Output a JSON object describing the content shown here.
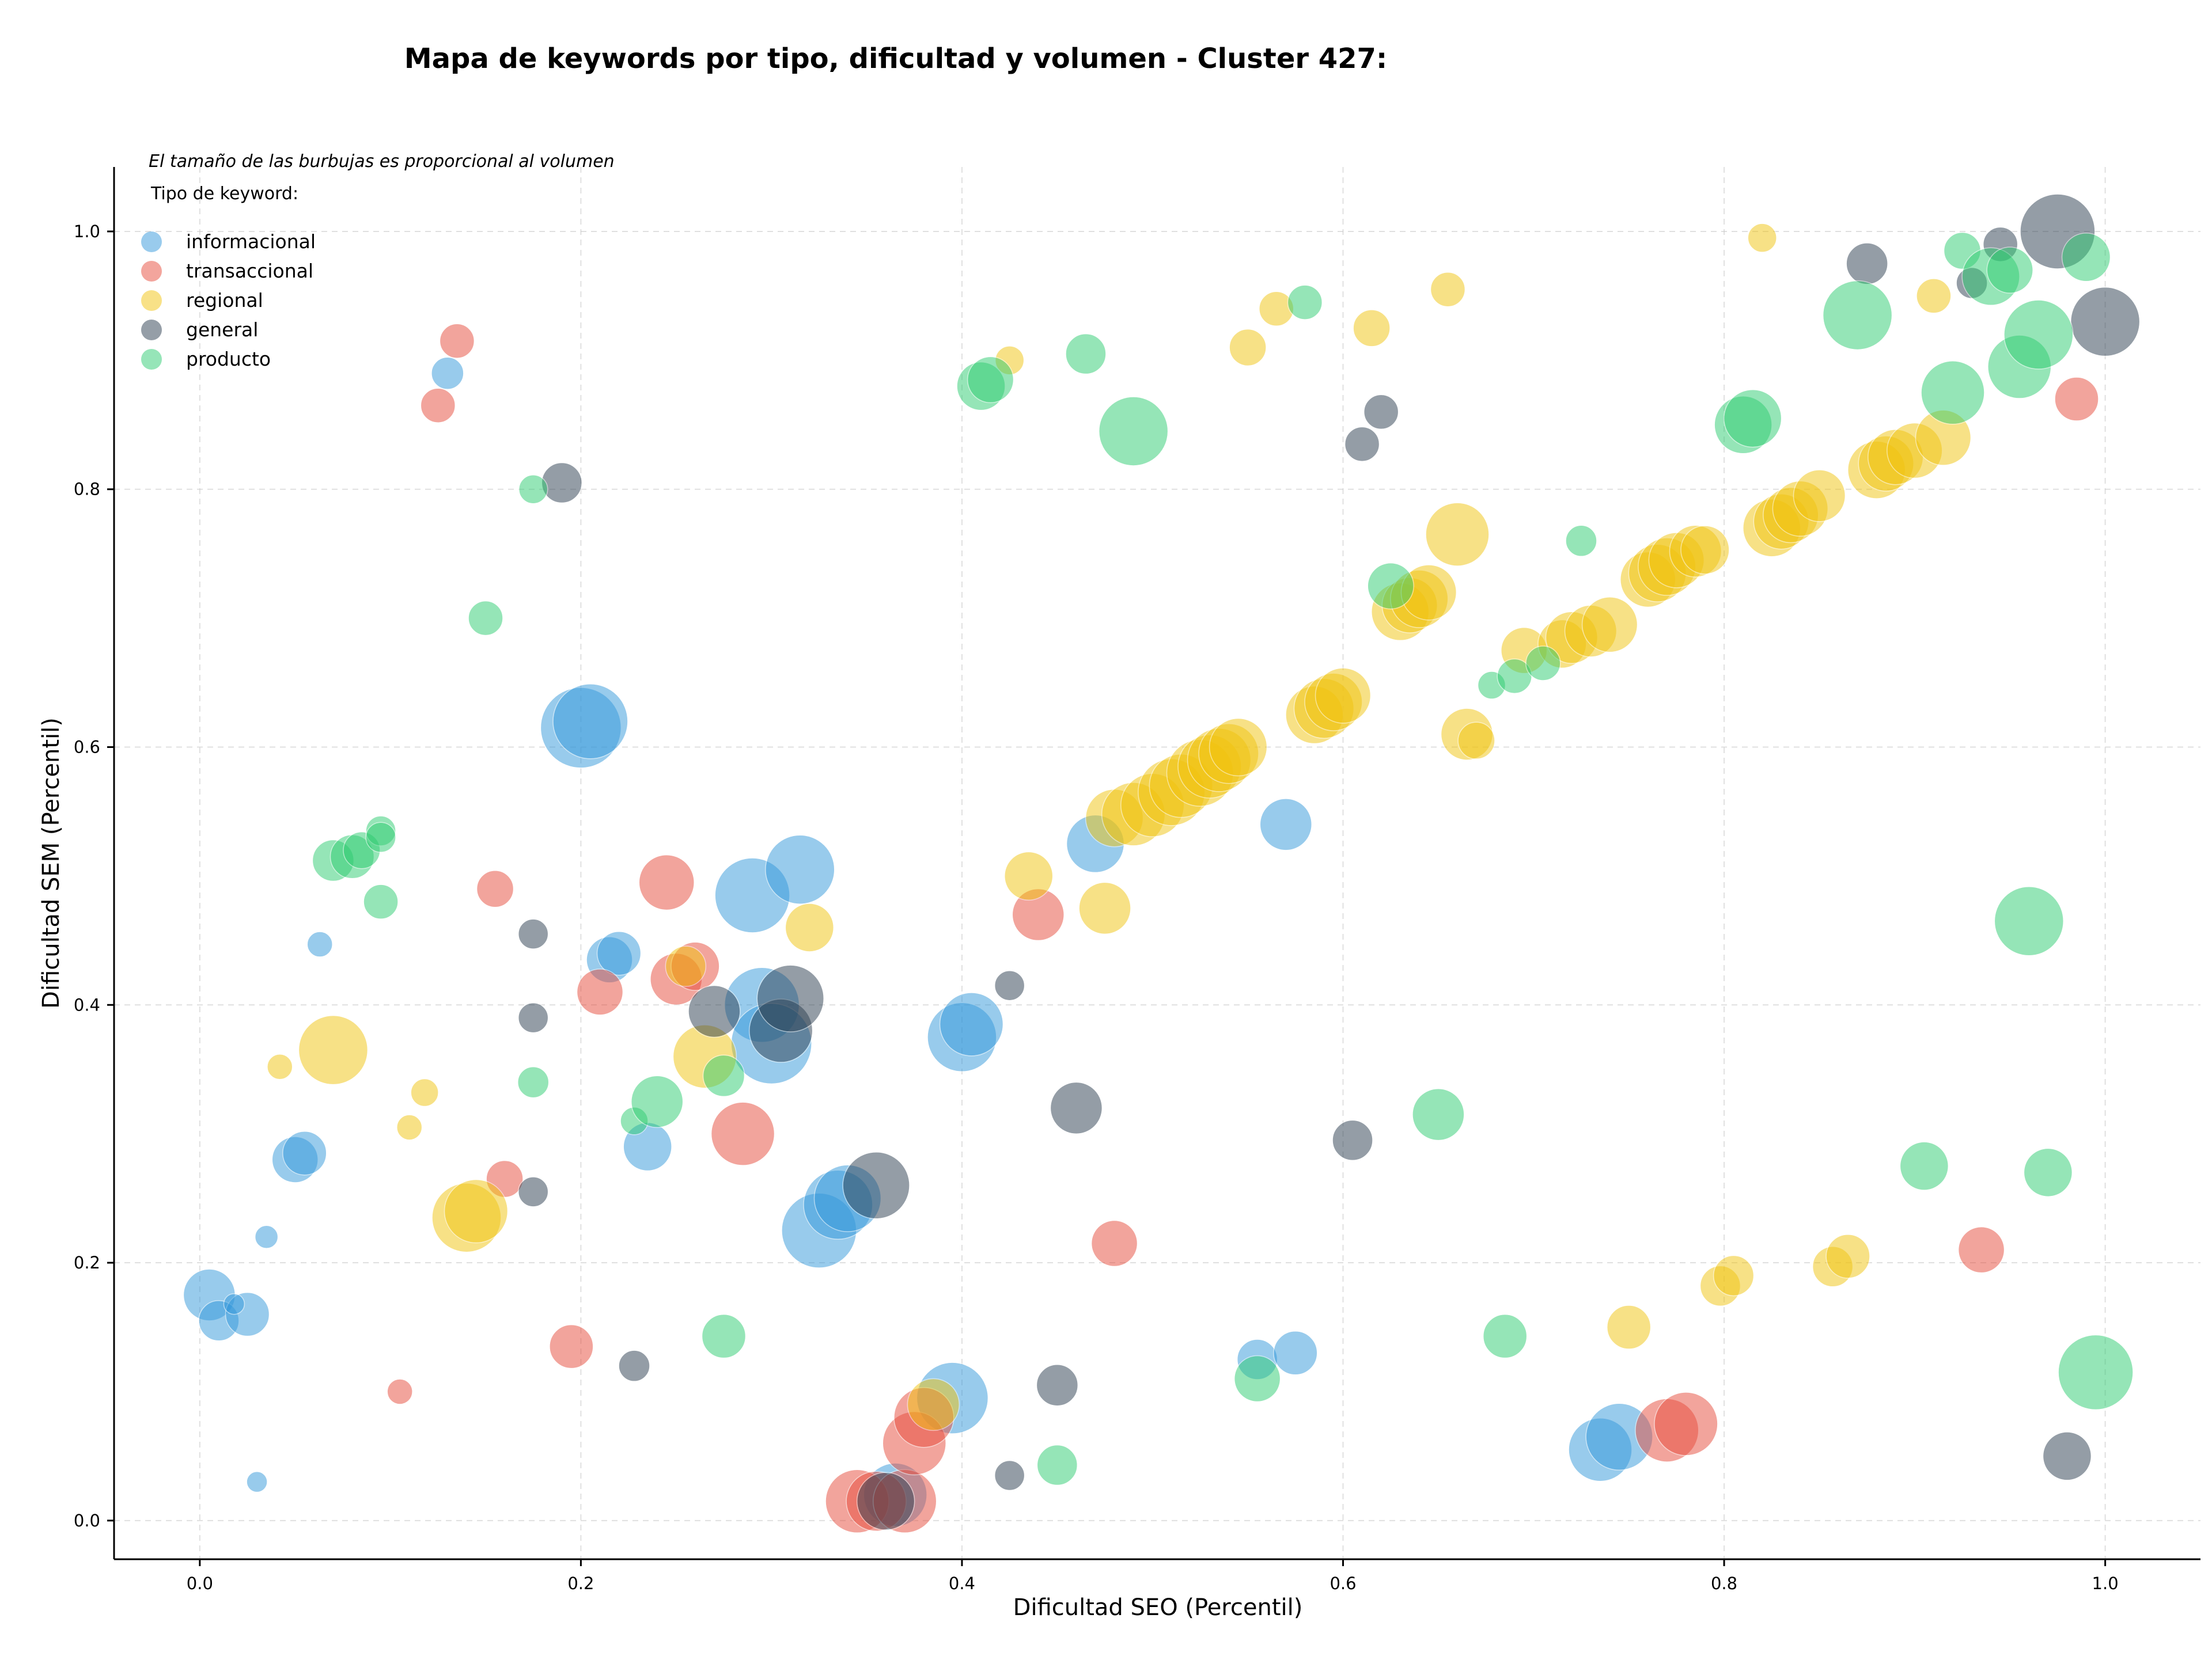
{
  "chart_data": {
    "type": "scatter",
    "title": "Mapa de keywords por tipo, dificultad y volumen - Cluster 427:",
    "xlabel": "Dificultad SEO (Percentil)",
    "ylabel": "Dificultad SEM (Percentil)",
    "xlim": [
      -0.045,
      1.05
    ],
    "ylim": [
      -0.03,
      1.05
    ],
    "x_ticks": [
      "0.0",
      "0.2",
      "0.4",
      "0.6",
      "0.8",
      "1.0"
    ],
    "y_ticks": [
      "0.0",
      "0.2",
      "0.4",
      "0.6",
      "0.8",
      "1.0"
    ],
    "grid": true,
    "note": "El tamaño de las burbujas es proporcional al volumen",
    "legend_title": "Tipo de keyword:",
    "legend_position": "top-left",
    "series": [
      {
        "name": "informacional",
        "color": "#3498db",
        "points": [
          [
            0.005,
            0.175,
            45
          ],
          [
            0.01,
            0.155,
            35
          ],
          [
            0.025,
            0.16,
            38
          ],
          [
            0.018,
            0.168,
            18
          ],
          [
            0.035,
            0.22,
            20
          ],
          [
            0.03,
            0.03,
            18
          ],
          [
            0.05,
            0.28,
            40
          ],
          [
            0.055,
            0.285,
            38
          ],
          [
            0.063,
            0.447,
            22
          ],
          [
            0.2,
            0.615,
            70
          ],
          [
            0.205,
            0.62,
            65
          ],
          [
            0.215,
            0.435,
            40
          ],
          [
            0.22,
            0.44,
            38
          ],
          [
            0.235,
            0.29,
            42
          ],
          [
            0.29,
            0.485,
            65
          ],
          [
            0.315,
            0.505,
            60
          ],
          [
            0.295,
            0.4,
            65
          ],
          [
            0.3,
            0.37,
            70
          ],
          [
            0.325,
            0.225,
            65
          ],
          [
            0.335,
            0.245,
            60
          ],
          [
            0.34,
            0.25,
            58
          ],
          [
            0.365,
            0.02,
            55
          ],
          [
            0.395,
            0.095,
            62
          ],
          [
            0.4,
            0.375,
            60
          ],
          [
            0.405,
            0.385,
            55
          ],
          [
            0.47,
            0.525,
            50
          ],
          [
            0.57,
            0.54,
            45
          ],
          [
            0.555,
            0.125,
            35
          ],
          [
            0.575,
            0.13,
            38
          ],
          [
            0.735,
            0.055,
            55
          ],
          [
            0.745,
            0.065,
            58
          ],
          [
            0.13,
            0.89,
            28
          ]
        ]
      },
      {
        "name": "transaccional",
        "color": "#e74c3c",
        "points": [
          [
            0.135,
            0.915,
            30
          ],
          [
            0.125,
            0.865,
            30
          ],
          [
            0.155,
            0.49,
            32
          ],
          [
            0.16,
            0.265,
            32
          ],
          [
            0.105,
            0.1,
            22
          ],
          [
            0.195,
            0.135,
            38
          ],
          [
            0.21,
            0.41,
            40
          ],
          [
            0.245,
            0.495,
            48
          ],
          [
            0.25,
            0.42,
            45
          ],
          [
            0.26,
            0.43,
            42
          ],
          [
            0.285,
            0.3,
            55
          ],
          [
            0.345,
            0.015,
            55
          ],
          [
            0.355,
            0.015,
            52
          ],
          [
            0.37,
            0.015,
            55
          ],
          [
            0.375,
            0.06,
            55
          ],
          [
            0.38,
            0.08,
            52
          ],
          [
            0.44,
            0.47,
            45
          ],
          [
            0.48,
            0.215,
            40
          ],
          [
            0.77,
            0.07,
            55
          ],
          [
            0.78,
            0.075,
            55
          ],
          [
            0.935,
            0.21,
            40
          ],
          [
            0.985,
            0.87,
            38
          ]
        ]
      },
      {
        "name": "regional",
        "color": "#f1c40f",
        "points": [
          [
            0.042,
            0.352,
            22
          ],
          [
            0.07,
            0.365,
            60
          ],
          [
            0.11,
            0.305,
            22
          ],
          [
            0.118,
            0.332,
            24
          ],
          [
            0.14,
            0.235,
            60
          ],
          [
            0.145,
            0.24,
            55
          ],
          [
            0.255,
            0.43,
            35
          ],
          [
            0.265,
            0.36,
            55
          ],
          [
            0.32,
            0.46,
            42
          ],
          [
            0.385,
            0.09,
            45
          ],
          [
            0.425,
            0.9,
            25
          ],
          [
            0.435,
            0.5,
            42
          ],
          [
            0.475,
            0.475,
            45
          ],
          [
            0.48,
            0.545,
            50
          ],
          [
            0.49,
            0.548,
            55
          ],
          [
            0.5,
            0.555,
            55
          ],
          [
            0.51,
            0.565,
            58
          ],
          [
            0.515,
            0.57,
            55
          ],
          [
            0.525,
            0.58,
            58
          ],
          [
            0.53,
            0.585,
            55
          ],
          [
            0.535,
            0.59,
            55
          ],
          [
            0.54,
            0.595,
            52
          ],
          [
            0.545,
            0.6,
            50
          ],
          [
            0.55,
            0.91,
            32
          ],
          [
            0.565,
            0.94,
            30
          ],
          [
            0.585,
            0.625,
            50
          ],
          [
            0.59,
            0.63,
            52
          ],
          [
            0.595,
            0.635,
            50
          ],
          [
            0.6,
            0.64,
            48
          ],
          [
            0.615,
            0.925,
            32
          ],
          [
            0.63,
            0.705,
            50
          ],
          [
            0.635,
            0.71,
            48
          ],
          [
            0.64,
            0.715,
            50
          ],
          [
            0.645,
            0.72,
            48
          ],
          [
            0.655,
            0.955,
            30
          ],
          [
            0.66,
            0.765,
            55
          ],
          [
            0.665,
            0.61,
            45
          ],
          [
            0.67,
            0.605,
            32
          ],
          [
            0.695,
            0.675,
            40
          ],
          [
            0.715,
            0.68,
            42
          ],
          [
            0.72,
            0.685,
            45
          ],
          [
            0.73,
            0.69,
            45
          ],
          [
            0.74,
            0.695,
            48
          ],
          [
            0.75,
            0.15,
            38
          ],
          [
            0.76,
            0.73,
            48
          ],
          [
            0.765,
            0.735,
            50
          ],
          [
            0.77,
            0.74,
            50
          ],
          [
            0.775,
            0.745,
            48
          ],
          [
            0.785,
            0.752,
            45
          ],
          [
            0.79,
            0.753,
            42
          ],
          [
            0.798,
            0.182,
            35
          ],
          [
            0.805,
            0.19,
            35
          ],
          [
            0.82,
            0.995,
            25
          ],
          [
            0.825,
            0.77,
            50
          ],
          [
            0.83,
            0.775,
            48
          ],
          [
            0.835,
            0.78,
            48
          ],
          [
            0.84,
            0.785,
            48
          ],
          [
            0.85,
            0.795,
            45
          ],
          [
            0.857,
            0.197,
            35
          ],
          [
            0.865,
            0.205,
            38
          ],
          [
            0.88,
            0.815,
            50
          ],
          [
            0.885,
            0.82,
            48
          ],
          [
            0.89,
            0.825,
            48
          ],
          [
            0.9,
            0.83,
            48
          ],
          [
            0.91,
            0.95,
            30
          ],
          [
            0.915,
            0.84,
            48
          ]
        ]
      },
      {
        "name": "general",
        "color": "#2c3e50",
        "points": [
          [
            0.19,
            0.805,
            35
          ],
          [
            0.175,
            0.455,
            26
          ],
          [
            0.175,
            0.39,
            26
          ],
          [
            0.175,
            0.255,
            26
          ],
          [
            0.228,
            0.12,
            27
          ],
          [
            0.27,
            0.395,
            45
          ],
          [
            0.305,
            0.38,
            55
          ],
          [
            0.31,
            0.405,
            58
          ],
          [
            0.355,
            0.26,
            58
          ],
          [
            0.36,
            0.015,
            50
          ],
          [
            0.425,
            0.415,
            26
          ],
          [
            0.425,
            0.035,
            26
          ],
          [
            0.45,
            0.105,
            36
          ],
          [
            0.46,
            0.32,
            45
          ],
          [
            0.605,
            0.295,
            35
          ],
          [
            0.61,
            0.835,
            30
          ],
          [
            0.62,
            0.86,
            30
          ],
          [
            0.875,
            0.975,
            36
          ],
          [
            0.93,
            0.96,
            27
          ],
          [
            0.945,
            0.99,
            30
          ],
          [
            0.975,
            1.0,
            65
          ],
          [
            0.98,
            0.05,
            42
          ],
          [
            1.0,
            0.93,
            60
          ]
        ]
      },
      {
        "name": "producto",
        "color": "#2ecc71",
        "points": [
          [
            0.07,
            0.512,
            36
          ],
          [
            0.08,
            0.515,
            38
          ],
          [
            0.085,
            0.52,
            32
          ],
          [
            0.095,
            0.535,
            26
          ],
          [
            0.095,
            0.53,
            26
          ],
          [
            0.095,
            0.48,
            30
          ],
          [
            0.15,
            0.7,
            30
          ],
          [
            0.175,
            0.8,
            25
          ],
          [
            0.175,
            0.34,
            27
          ],
          [
            0.228,
            0.31,
            24
          ],
          [
            0.24,
            0.325,
            45
          ],
          [
            0.275,
            0.345,
            36
          ],
          [
            0.275,
            0.143,
            38
          ],
          [
            0.41,
            0.88,
            42
          ],
          [
            0.415,
            0.885,
            40
          ],
          [
            0.45,
            0.043,
            35
          ],
          [
            0.465,
            0.905,
            35
          ],
          [
            0.49,
            0.845,
            60
          ],
          [
            0.555,
            0.11,
            40
          ],
          [
            0.58,
            0.945,
            30
          ],
          [
            0.625,
            0.725,
            40
          ],
          [
            0.65,
            0.315,
            45
          ],
          [
            0.678,
            0.648,
            24
          ],
          [
            0.685,
            0.143,
            38
          ],
          [
            0.69,
            0.655,
            30
          ],
          [
            0.705,
            0.665,
            30
          ],
          [
            0.725,
            0.76,
            27
          ],
          [
            0.81,
            0.85,
            50
          ],
          [
            0.815,
            0.855,
            50
          ],
          [
            0.87,
            0.935,
            60
          ],
          [
            0.905,
            0.275,
            42
          ],
          [
            0.92,
            0.875,
            55
          ],
          [
            0.925,
            0.985,
            32
          ],
          [
            0.94,
            0.965,
            50
          ],
          [
            0.95,
            0.97,
            40
          ],
          [
            0.955,
            0.895,
            55
          ],
          [
            0.96,
            0.465,
            60
          ],
          [
            0.965,
            0.92,
            60
          ],
          [
            0.97,
            0.27,
            42
          ],
          [
            0.99,
            0.98,
            42
          ],
          [
            0.995,
            0.115,
            65
          ]
        ]
      }
    ]
  }
}
